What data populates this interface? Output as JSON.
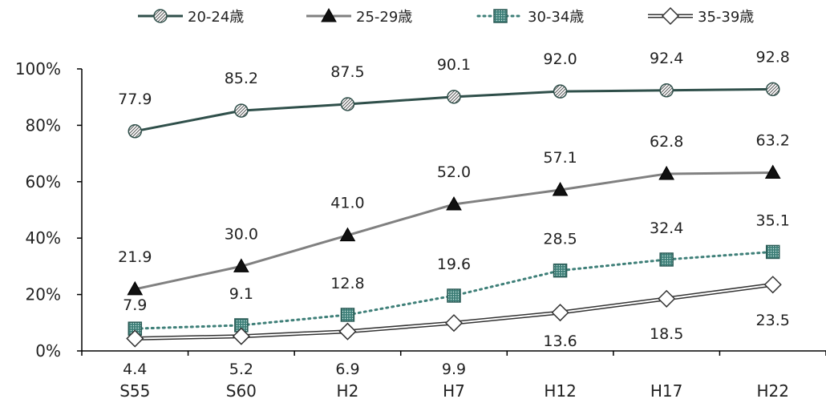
{
  "chart_data": {
    "type": "line",
    "categories": [
      "S55",
      "S60",
      "H2",
      "H7",
      "H12",
      "H17",
      "H22"
    ],
    "y_ticks": [
      "0%",
      "20%",
      "40%",
      "60%",
      "80%",
      "100%"
    ],
    "ylim": [
      0,
      100
    ],
    "grid": false,
    "legend_position": "top",
    "series": [
      {
        "name": "20-24歳",
        "values": [
          77.9,
          85.2,
          87.5,
          90.1,
          92.0,
          92.4,
          92.8
        ],
        "labels": [
          "77.9",
          "85.2",
          "87.5",
          "90.1",
          "92.0",
          "92.4",
          "92.8"
        ],
        "color": "#2f4f4a",
        "marker": "circle-hatched",
        "line": "solid"
      },
      {
        "name": "25-29歳",
        "values": [
          21.9,
          30.0,
          41.0,
          52.0,
          57.1,
          62.8,
          63.2
        ],
        "labels": [
          "21.9",
          "30.0",
          "41.0",
          "52.0",
          "57.1",
          "62.8",
          "63.2"
        ],
        "color": "#808080",
        "marker": "triangle",
        "line": "solid"
      },
      {
        "name": "30-34歳",
        "values": [
          7.9,
          9.1,
          12.8,
          19.6,
          28.5,
          32.4,
          35.1
        ],
        "labels": [
          "7.9",
          "9.1",
          "12.8",
          "19.6",
          "28.5",
          "32.4",
          "35.1"
        ],
        "color": "#3e7f78",
        "marker": "square-dotted",
        "line": "dotted"
      },
      {
        "name": "35-39歳",
        "values": [
          4.4,
          5.2,
          6.9,
          9.9,
          13.6,
          18.5,
          23.5
        ],
        "labels": [
          "4.4",
          "5.2",
          "6.9",
          "9.9",
          "13.6",
          "18.5",
          "23.5"
        ],
        "color": "#333333",
        "marker": "diamond",
        "line": "double"
      }
    ]
  }
}
